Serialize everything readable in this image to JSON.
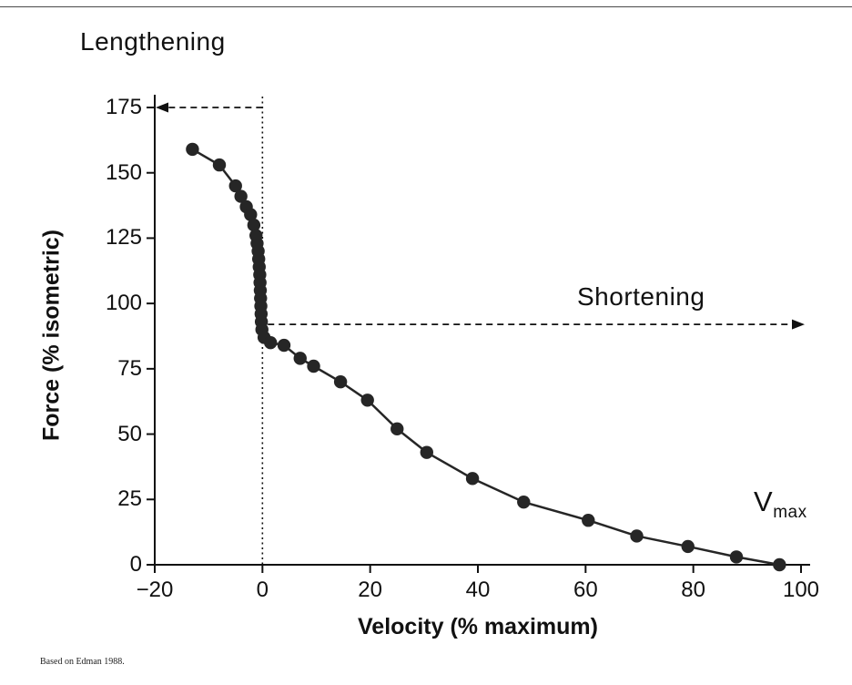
{
  "chart_data": {
    "type": "scatter",
    "title": "",
    "xlabel": "Velocity (% maximum)",
    "ylabel": "Force (% isometric)",
    "xlim": [
      -20,
      100
    ],
    "ylim": [
      0,
      175
    ],
    "grid": false,
    "x_ticks": [
      -20,
      0,
      20,
      40,
      60,
      80,
      100
    ],
    "x_tick_labels": [
      "−20",
      "0",
      "20",
      "40",
      "60",
      "80",
      "100"
    ],
    "y_ticks": [
      0,
      25,
      50,
      75,
      100,
      125,
      150,
      175
    ],
    "y_tick_labels": [
      "0",
      "25",
      "50",
      "75",
      "100",
      "125",
      "150",
      "175"
    ],
    "points": [
      [
        -13,
        159
      ],
      [
        -8,
        153
      ],
      [
        -5,
        145
      ],
      [
        -4,
        141
      ],
      [
        -3,
        137
      ],
      [
        -2.2,
        134
      ],
      [
        -1.6,
        130
      ],
      [
        -1.2,
        126
      ],
      [
        -1.0,
        123
      ],
      [
        -0.8,
        120
      ],
      [
        -0.7,
        117
      ],
      [
        -0.6,
        114
      ],
      [
        -0.5,
        111
      ],
      [
        -0.45,
        108
      ],
      [
        -0.4,
        105
      ],
      [
        -0.35,
        102
      ],
      [
        -0.3,
        99
      ],
      [
        -0.25,
        96
      ],
      [
        -0.2,
        93
      ],
      [
        -0.1,
        90
      ],
      [
        0.3,
        87
      ],
      [
        1.5,
        85
      ],
      [
        4,
        84
      ],
      [
        7,
        79
      ],
      [
        9.5,
        76
      ],
      [
        14.5,
        70
      ],
      [
        19.5,
        63
      ],
      [
        25,
        52
      ],
      [
        30.5,
        43
      ],
      [
        39,
        33
      ],
      [
        48.5,
        24
      ],
      [
        60.5,
        17
      ],
      [
        69.5,
        11
      ],
      [
        79,
        7
      ],
      [
        88,
        3
      ],
      [
        96,
        0
      ]
    ],
    "annotations": {
      "lengthening": "Lengthening",
      "shortening": "Shortening",
      "vmax_base": "V",
      "vmax_sub": "max",
      "zero_velocity_line_x": 0,
      "lengthening_arrow_y": 175,
      "shortening_arrow_y": 92
    },
    "source": "Based on Edman 1988.",
    "colors": {
      "ink": "#111111",
      "marker": "#262626"
    }
  }
}
